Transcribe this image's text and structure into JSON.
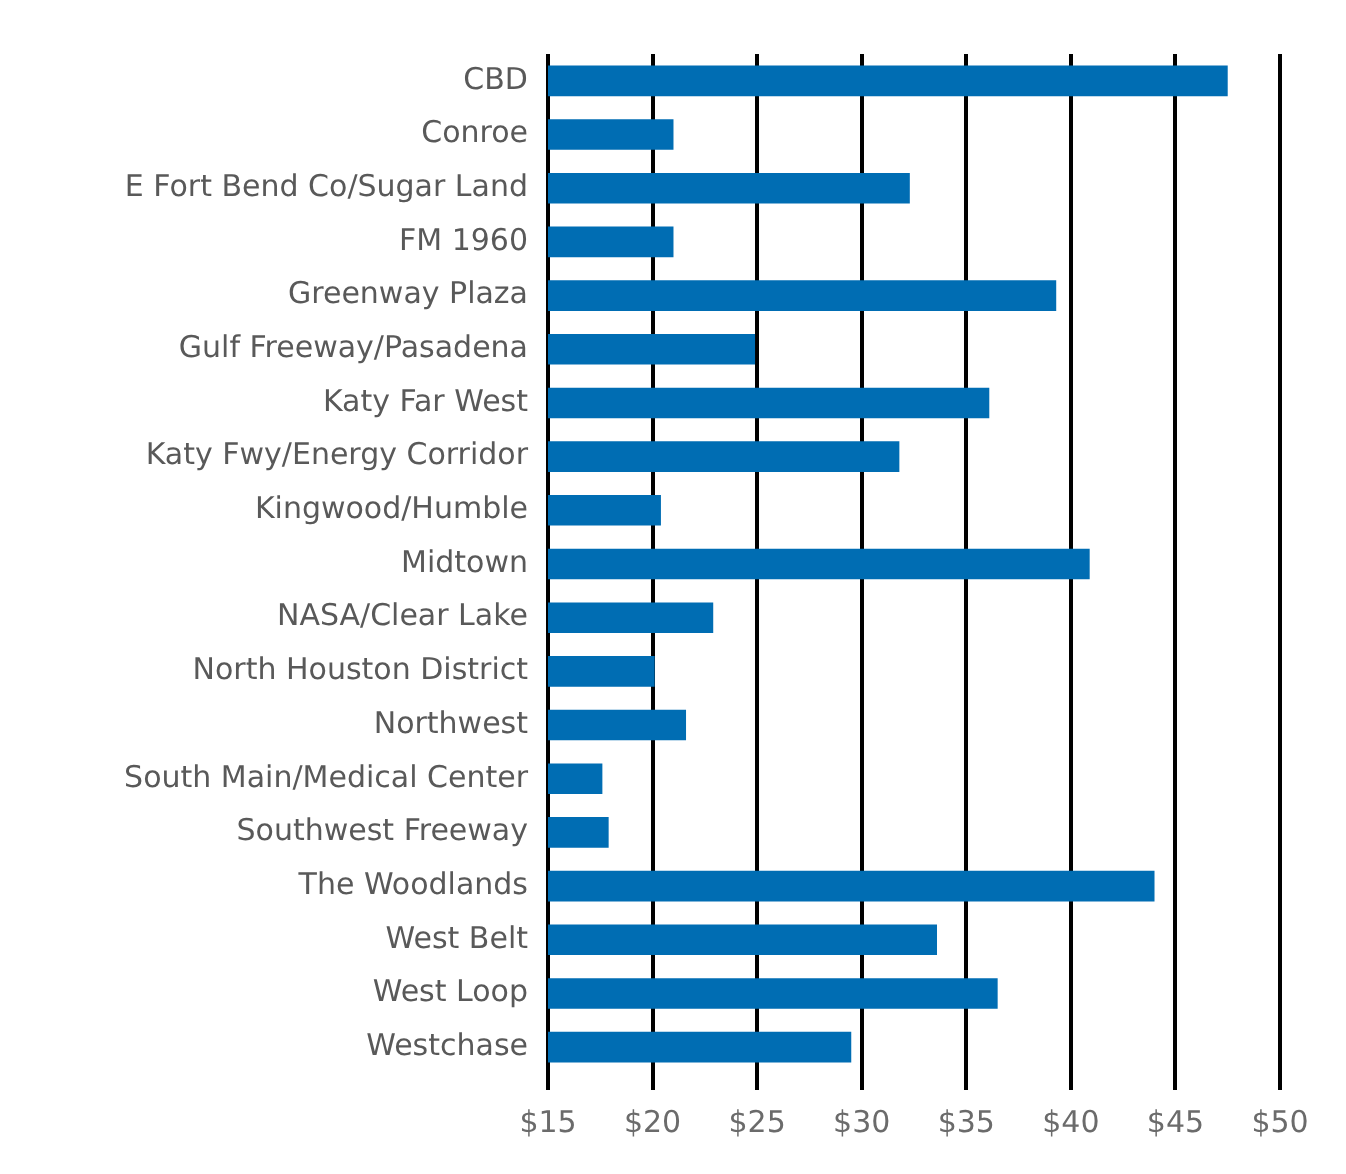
{
  "chart_data": {
    "type": "bar",
    "orientation": "horizontal",
    "categories": [
      "CBD",
      "Conroe",
      "E Fort Bend Co/Sugar Land",
      "FM 1960",
      "Greenway Plaza",
      "Gulf Freeway/Pasadena",
      "Katy Far West",
      "Katy Fwy/Energy Corridor",
      "Kingwood/Humble",
      "Midtown",
      "NASA/Clear Lake",
      "North Houston District",
      "Northwest",
      "South Main/Medical Center",
      "Southwest Freeway",
      "The Woodlands",
      "West Belt",
      "West Loop",
      "Westchase"
    ],
    "values": [
      47.5,
      21.0,
      32.3,
      21.0,
      39.3,
      24.9,
      36.1,
      31.8,
      20.4,
      40.9,
      22.9,
      20.1,
      21.6,
      17.6,
      17.9,
      44.0,
      33.6,
      36.5,
      29.5
    ],
    "color": "#006db3",
    "xlim": [
      15,
      50
    ],
    "xticks": [
      {
        "value": 15,
        "label": "$15"
      },
      {
        "value": 20,
        "label": "$20"
      },
      {
        "value": 25,
        "label": "$25"
      },
      {
        "value": 30,
        "label": "$30"
      },
      {
        "value": 35,
        "label": "$35"
      },
      {
        "value": 40,
        "label": "$40"
      },
      {
        "value": 45,
        "label": "$45"
      },
      {
        "value": 50,
        "label": "$50"
      }
    ],
    "grid": "x"
  }
}
